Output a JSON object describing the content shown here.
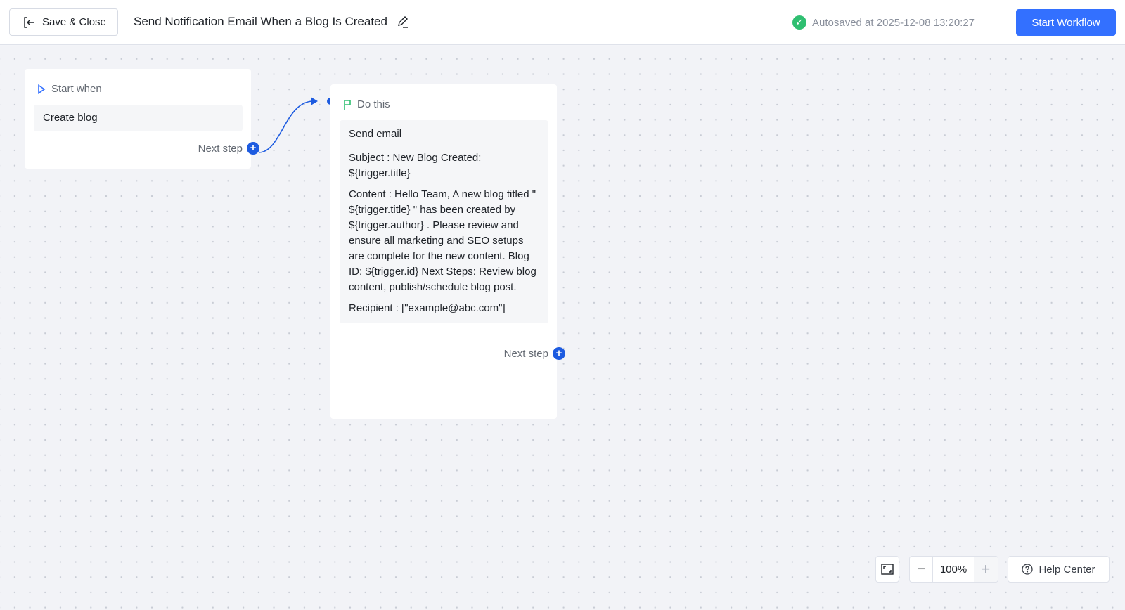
{
  "header": {
    "save_close_label": "Save & Close",
    "title": "Send Notification Email When a Blog Is Created",
    "autosave": "Autosaved at 2025-12-08 13:20:27",
    "start_workflow_label": "Start Workflow"
  },
  "trigger_node": {
    "heading": "Start when",
    "event": "Create blog",
    "next_step": "Next step"
  },
  "action_node": {
    "heading": "Do this",
    "action": "Send email",
    "subject": "Subject : New Blog Created: ${trigger.title}",
    "content": "Content : Hello Team, A new blog titled \" ${trigger.title} \" has been created by ${trigger.author} . Please review and ensure all marketing and SEO setups are complete for the new content. Blog ID: ${trigger.id} Next Steps: Review blog content, publish/schedule blog post.",
    "recipient": "Recipient : [\"example@abc.com\"]",
    "next_step": "Next step"
  },
  "controls": {
    "zoom_level": "100%",
    "zoom_out": "−",
    "zoom_in": "+",
    "help_center": "Help Center"
  },
  "colors": {
    "accent": "#3370ff",
    "connector": "#1d5be0",
    "success": "#2fbf71"
  }
}
